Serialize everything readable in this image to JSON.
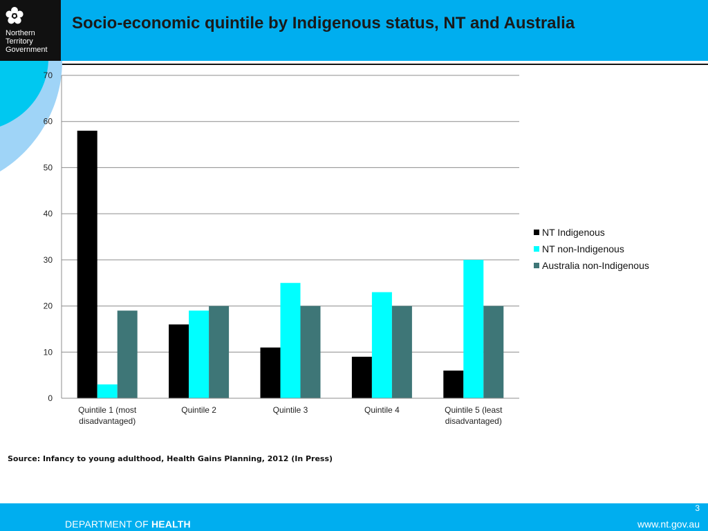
{
  "header": {
    "title": "Socio-economic quintile by Indigenous status, NT and Australia",
    "logo_text": "Northern\nTerritory\nGovernment"
  },
  "colors": {
    "header_bg": "#00aeef",
    "NT Indigenous": "#000000",
    "NT non-Indigenous": "#00ffff",
    "Australia non-Indigenous": "#3e7677"
  },
  "chart_data": {
    "type": "bar",
    "categories": [
      [
        "Quintile 1 (most",
        "disadvantaged)"
      ],
      [
        "Quintile 2"
      ],
      [
        "Quintile 3"
      ],
      [
        "Quintile 4"
      ],
      [
        "Quintile 5 (least",
        "disadvantaged)"
      ]
    ],
    "series": [
      {
        "name": "NT Indigenous",
        "values": [
          58,
          16,
          11,
          9,
          6
        ]
      },
      {
        "name": "NT non-Indigenous",
        "values": [
          3,
          19,
          25,
          23,
          30
        ]
      },
      {
        "name": "Australia non-Indigenous",
        "values": [
          19,
          20,
          20,
          20,
          20
        ]
      }
    ],
    "ylim": [
      0,
      70
    ],
    "yticks": [
      0,
      10,
      20,
      30,
      40,
      50,
      60,
      70
    ],
    "grid": true,
    "legend": "right"
  },
  "source": "Source: Infancy to young adulthood, Health Gains Planning, 2012 (In Press)",
  "footer": {
    "page_number": "3",
    "department_prefix": "DEPARTMENT OF ",
    "department_bold": "HEALTH",
    "website": "www.nt.gov.au"
  }
}
